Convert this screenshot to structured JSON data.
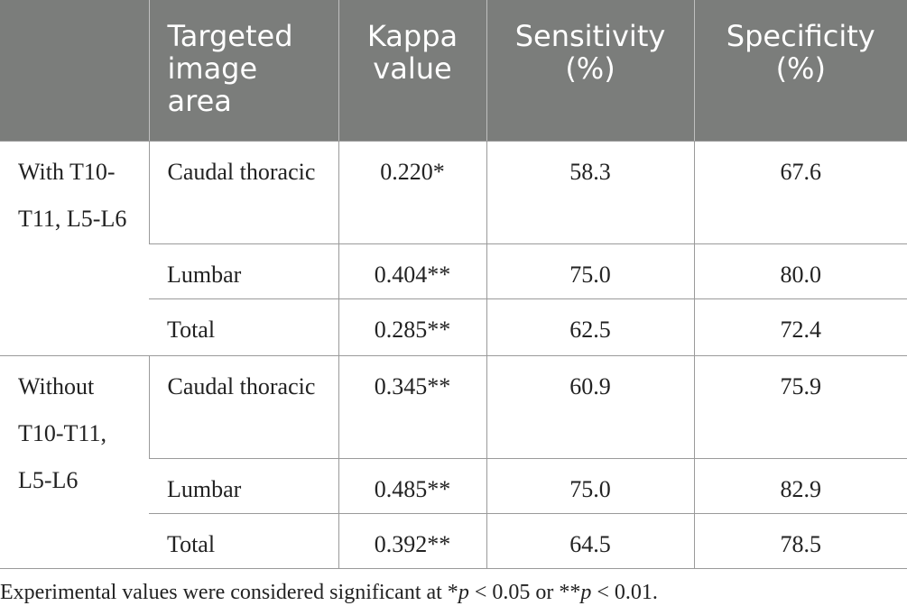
{
  "table": {
    "headers": [
      "",
      "Targeted image area",
      "Kappa value",
      "Sensitivity (%)",
      "Specificity (%)"
    ],
    "groups": [
      {
        "label": "With T10-T11, L5-L6",
        "rows": [
          {
            "area": "Caudal thoracic",
            "kappa": "0.220*",
            "sensitivity": "58.3",
            "specificity": "67.6"
          },
          {
            "area": "Lumbar",
            "kappa": "0.404**",
            "sensitivity": "75.0",
            "specificity": "80.0"
          },
          {
            "area": "Total",
            "kappa": "0.285**",
            "sensitivity": "62.5",
            "specificity": "72.4"
          }
        ]
      },
      {
        "label": "Without T10-T11, L5-L6",
        "rows": [
          {
            "area": "Caudal thoracic",
            "kappa": "0.345**",
            "sensitivity": "60.9",
            "specificity": "75.9"
          },
          {
            "area": "Lumbar",
            "kappa": "0.485**",
            "sensitivity": "75.0",
            "specificity": "82.9"
          },
          {
            "area": "Total",
            "kappa": "0.392**",
            "sensitivity": "64.5",
            "specificity": "78.5"
          }
        ]
      }
    ]
  },
  "footnote": {
    "prefix": "Experimental values were considered significant at *",
    "p1": "p",
    "mid": " < 0.05 or **",
    "p2": "p",
    "suffix": " < 0.01."
  }
}
